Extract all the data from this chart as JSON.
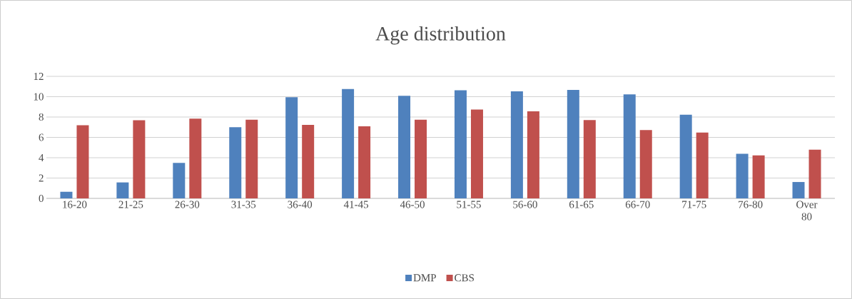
{
  "chart_data": {
    "type": "bar",
    "title": "Age distribution",
    "categories": [
      "16-20",
      "21-25",
      "26-30",
      "31-35",
      "36-40",
      "41-45",
      "46-50",
      "51-55",
      "56-60",
      "61-65",
      "66-70",
      "71-75",
      "76-80",
      "Over 80"
    ],
    "series": [
      {
        "name": "DMP",
        "color": "#4f81bd",
        "values": [
          0.65,
          1.57,
          3.49,
          7.0,
          9.95,
          10.76,
          10.08,
          10.64,
          10.53,
          10.67,
          10.23,
          8.22,
          4.38,
          1.61
        ]
      },
      {
        "name": "CBS",
        "color": "#c0504d",
        "values": [
          7.19,
          7.68,
          7.84,
          7.73,
          7.22,
          7.08,
          7.73,
          8.73,
          8.57,
          7.7,
          6.72,
          6.48,
          4.22,
          4.79
        ]
      }
    ],
    "ylim": [
      0,
      12
    ],
    "yticks": [
      0,
      2,
      4,
      6,
      8,
      10,
      12
    ],
    "grid": "y",
    "legend": "bottom"
  }
}
